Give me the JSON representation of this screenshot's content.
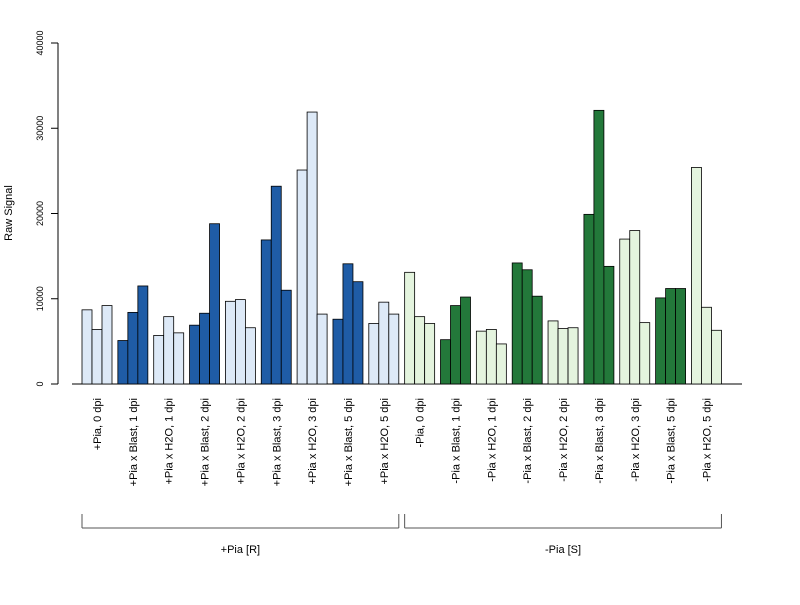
{
  "chart_data": {
    "type": "bar",
    "ylabel": "Raw Signal",
    "ylim": [
      0,
      40000
    ],
    "yticks": [
      "0",
      "10000",
      "20000",
      "30000",
      "40000"
    ],
    "ytick_values": [
      0,
      10000,
      20000,
      30000,
      40000
    ],
    "grid": false,
    "categories": [
      "+Pia, 0 dpi",
      "+Pia x Blast, 1 dpi",
      "+Pia x H2O, 1 dpi",
      "+Pia x Blast, 2 dpi",
      "+Pia x H2O, 2 dpi",
      "+Pia x Blast, 3 dpi",
      "+Pia x H2O, 3 dpi",
      "+Pia x Blast, 5 dpi",
      "+Pia x H2O, 5 dpi",
      "-Pia, 0 dpi",
      "-Pia x Blast, 1 dpi",
      "-Pia x H2O, 1 dpi",
      "-Pia x Blast, 2 dpi",
      "-Pia x H2O, 2 dpi",
      "-Pia x Blast, 3 dpi",
      "-Pia x H2O, 3 dpi",
      "-Pia x Blast, 5 dpi",
      "-Pia x H2O, 5 dpi"
    ],
    "replicates": [
      [
        8700,
        6400,
        9200
      ],
      [
        5100,
        8400,
        11500
      ],
      [
        5700,
        7900,
        6000
      ],
      [
        6900,
        8300,
        18800
      ],
      [
        9700,
        9900,
        6600
      ],
      [
        16900,
        23200,
        11000
      ],
      [
        25100,
        31900,
        8200
      ],
      [
        7600,
        14100,
        12000
      ],
      [
        7100,
        9600,
        8200
      ],
      [
        13100,
        7900,
        7100
      ],
      [
        5200,
        9200,
        10200
      ],
      [
        6200,
        6400,
        4700
      ],
      [
        14200,
        13400,
        10300
      ],
      [
        7400,
        6500,
        6600
      ],
      [
        19900,
        32100,
        13800
      ],
      [
        17000,
        18000,
        7200
      ],
      [
        10100,
        11200,
        11200
      ],
      [
        25400,
        9000,
        6300
      ]
    ],
    "bar_colors": [
      "#dde9f7",
      "#1f5ca6",
      "#dde9f7",
      "#1f5ca6",
      "#dde9f7",
      "#1f5ca6",
      "#dde9f7",
      "#1f5ca6",
      "#dde9f7",
      "#e4f4de",
      "#23783a",
      "#e4f4de",
      "#23783a",
      "#e4f4de",
      "#23783a",
      "#e4f4de",
      "#23783a",
      "#e4f4de"
    ],
    "groups": [
      {
        "label": "+Pia [R]",
        "from": 0,
        "to": 8
      },
      {
        "label": "-Pia [S]",
        "from": 9,
        "to": 17
      }
    ]
  }
}
